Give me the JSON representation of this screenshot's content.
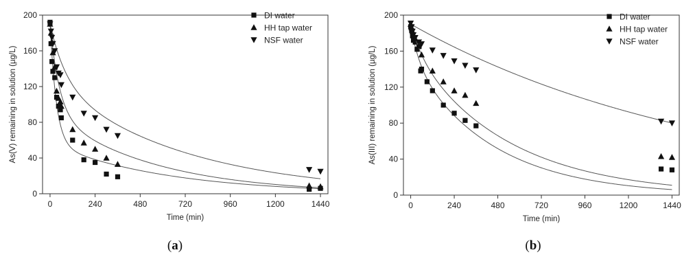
{
  "chart_data": [
    {
      "type": "scatter",
      "panel_label": {
        "open": "(",
        "letter": "a",
        "close": ")"
      },
      "title": "",
      "xlabel": "Time (min)",
      "ylabel": "As(V) remaining in solution (µg/L)",
      "xlim": [
        -40,
        1480
      ],
      "ylim": [
        0,
        200
      ],
      "xticks": [
        0,
        240,
        480,
        720,
        960,
        1200,
        1440
      ],
      "yticks": [
        0,
        40,
        80,
        120,
        160,
        200
      ],
      "grid": false,
      "legend_position": "top-right",
      "series": [
        {
          "name": "DI water",
          "marker": "square",
          "points": [
            [
              0,
              192
            ],
            [
              5,
              168
            ],
            [
              10,
              148
            ],
            [
              15,
              137
            ],
            [
              25,
              130
            ],
            [
              35,
              108
            ],
            [
              45,
              98
            ],
            [
              55,
              94
            ],
            [
              60,
              85
            ],
            [
              120,
              60
            ],
            [
              180,
              38
            ],
            [
              240,
              35
            ],
            [
              300,
              22
            ],
            [
              360,
              19
            ],
            [
              1380,
              5
            ],
            [
              1440,
              6
            ]
          ],
          "fit": {
            "c0": 192,
            "a1": 136,
            "k1": 0.03,
            "a2": 56,
            "k2": 0.0016
          }
        },
        {
          "name": "HH tap water",
          "marker": "triangle-up",
          "points": [
            [
              0,
              190
            ],
            [
              5,
              180
            ],
            [
              10,
              170
            ],
            [
              15,
              158
            ],
            [
              25,
              142
            ],
            [
              35,
              115
            ],
            [
              45,
              107
            ],
            [
              55,
              103
            ],
            [
              60,
              98
            ],
            [
              120,
              72
            ],
            [
              180,
              57
            ],
            [
              240,
              50
            ],
            [
              300,
              40
            ],
            [
              360,
              33
            ],
            [
              1380,
              9
            ],
            [
              1440,
              8
            ]
          ],
          "fit": {
            "c0": 190,
            "a1": 100,
            "k1": 0.02,
            "a2": 90,
            "k2": 0.0018
          }
        },
        {
          "name": "NSF water",
          "marker": "triangle-down",
          "points": [
            [
              0,
              190
            ],
            [
              5,
              182
            ],
            [
              10,
              175
            ],
            [
              15,
              168
            ],
            [
              25,
              160
            ],
            [
              35,
              142
            ],
            [
              45,
              135
            ],
            [
              55,
              133
            ],
            [
              60,
              122
            ],
            [
              120,
              108
            ],
            [
              180,
              90
            ],
            [
              240,
              85
            ],
            [
              300,
              72
            ],
            [
              360,
              65
            ],
            [
              1380,
              27
            ],
            [
              1440,
              25
            ]
          ],
          "fit": {
            "c0": 190,
            "a1": 64,
            "k1": 0.012,
            "a2": 126,
            "k2": 0.0014
          }
        }
      ]
    },
    {
      "type": "scatter",
      "panel_label": {
        "open": "(",
        "letter": "b",
        "close": ")"
      },
      "title": "",
      "xlabel": "Time (min)",
      "ylabel": "As(III) remaining in solution (µg/L)",
      "xlim": [
        -40,
        1480
      ],
      "ylim": [
        0,
        200
      ],
      "xticks": [
        0,
        240,
        480,
        720,
        960,
        1200,
        1440
      ],
      "yticks": [
        0,
        40,
        80,
        120,
        160,
        200
      ],
      "grid": false,
      "legend_position": "top-right",
      "series": [
        {
          "name": "DI water",
          "marker": "square",
          "points": [
            [
              0,
              187
            ],
            [
              5,
              183
            ],
            [
              10,
              177
            ],
            [
              15,
              172
            ],
            [
              25,
              170
            ],
            [
              35,
              162
            ],
            [
              45,
              165
            ],
            [
              55,
              138
            ],
            [
              60,
              140
            ],
            [
              90,
              126
            ],
            [
              120,
              116
            ],
            [
              180,
              100
            ],
            [
              240,
              91
            ],
            [
              300,
              83
            ],
            [
              360,
              77
            ],
            [
              1380,
              29
            ],
            [
              1440,
              28
            ]
          ],
          "fit": {
            "c0": 188,
            "a1": 38,
            "k1": 0.02,
            "a2": 150,
            "k2": 0.00222
          }
        },
        {
          "name": "HH tap water",
          "marker": "triangle-up",
          "points": [
            [
              0,
              190
            ],
            [
              5,
              186
            ],
            [
              10,
              182
            ],
            [
              15,
              178
            ],
            [
              25,
              174
            ],
            [
              45,
              166
            ],
            [
              60,
              156
            ],
            [
              120,
              138
            ],
            [
              180,
              126
            ],
            [
              240,
              116
            ],
            [
              300,
              111
            ],
            [
              360,
              102
            ],
            [
              1380,
              43
            ],
            [
              1440,
              42
            ]
          ],
          "fit": {
            "c0": 190,
            "a1": 28,
            "k1": 0.015,
            "a2": 162,
            "k2": 0.00187
          }
        },
        {
          "name": "NSF water",
          "marker": "triangle-down",
          "points": [
            [
              0,
              191
            ],
            [
              5,
              187
            ],
            [
              10,
              182
            ],
            [
              15,
              178
            ],
            [
              25,
              175
            ],
            [
              45,
              170
            ],
            [
              60,
              168
            ],
            [
              120,
              161
            ],
            [
              180,
              155
            ],
            [
              240,
              149
            ],
            [
              300,
              144
            ],
            [
              360,
              139
            ],
            [
              1380,
              82
            ],
            [
              1440,
              80
            ]
          ],
          "fit": {
            "c0": 190,
            "a1": 0,
            "k1": 0.01,
            "a2": 190,
            "k2": 0.0006
          }
        }
      ]
    }
  ]
}
